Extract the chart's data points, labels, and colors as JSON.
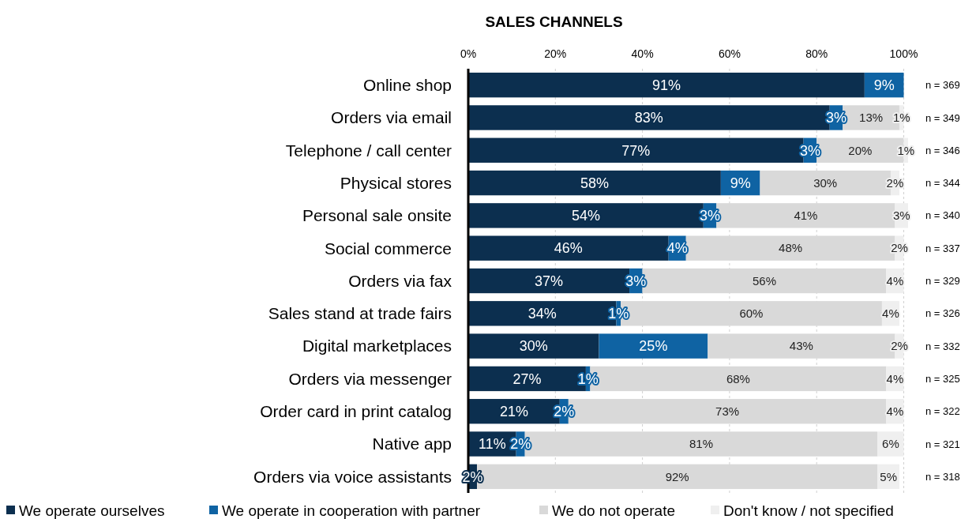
{
  "chart_data": {
    "type": "bar",
    "orientation": "horizontal",
    "stacked": true,
    "title": "SALES CHANNELS",
    "categories": [
      "Online shop",
      "Orders via email",
      "Telephone / call center",
      "Physical stores",
      "Personal sale onsite",
      "Social commerce",
      "Orders via fax",
      "Sales stand at trade fairs",
      "Digital marketplaces",
      "Orders via messenger",
      "Order card in print catalog",
      "Native app",
      "Orders via voice assistants"
    ],
    "series": [
      {
        "name": "We operate ourselves",
        "color": "#0c2f4f",
        "values": [
          91,
          83,
          77,
          58,
          54,
          46,
          37,
          34,
          30,
          27,
          21,
          11,
          2
        ],
        "value_labels": [
          "91%",
          "83%",
          "77%",
          "58%",
          "54%",
          "46%",
          "37%",
          "34%",
          "30%",
          "27%",
          "21%",
          "11%",
          "2%"
        ]
      },
      {
        "name": "We operate in cooperation with partner",
        "color": "#0f63a3",
        "values": [
          9,
          3,
          3,
          9,
          3,
          4,
          3,
          1,
          25,
          1,
          2,
          2,
          null
        ],
        "value_labels": [
          "9%",
          "3%",
          "3%",
          "9%",
          "3%",
          "4%",
          "3%",
          "1%",
          "25%",
          "1%",
          "2%",
          "2%",
          null
        ]
      },
      {
        "name": "We do not operate",
        "color": "#d9d9d9",
        "values": [
          null,
          13,
          20,
          30,
          41,
          48,
          56,
          60,
          43,
          68,
          73,
          81,
          92
        ],
        "value_labels": [
          null,
          "13%",
          "20%",
          "30%",
          "41%",
          "48%",
          "56%",
          "60%",
          "43%",
          "68%",
          "73%",
          "81%",
          "92%"
        ]
      },
      {
        "name": "Don't know / not specified",
        "color": "#efefef",
        "values": [
          null,
          1,
          1,
          2,
          3,
          2,
          4,
          4,
          2,
          4,
          4,
          6,
          5
        ],
        "value_labels": [
          null,
          "1%",
          "1%",
          "2%",
          "3%",
          "2%",
          "4%",
          "4%",
          "2%",
          "4%",
          "4%",
          "6%",
          "5%"
        ]
      }
    ],
    "xlim": [
      0,
      101
    ],
    "xticks": [
      {
        "value": 0,
        "label": "0%"
      },
      {
        "value": 20,
        "label": "20%"
      },
      {
        "value": 40,
        "label": "40%"
      },
      {
        "value": 60,
        "label": "60%"
      },
      {
        "value": 80,
        "label": "80%"
      },
      {
        "value": 100,
        "label": "100%"
      }
    ],
    "grid": "x",
    "legend": "bottom",
    "annotations": [
      "n = 369",
      "n = 349",
      "n = 346",
      "n = 344",
      "n = 340",
      "n = 337",
      "n = 329",
      "n = 326",
      "n = 332",
      "n = 325",
      "n = 322",
      "n = 321",
      "n = 318"
    ]
  }
}
